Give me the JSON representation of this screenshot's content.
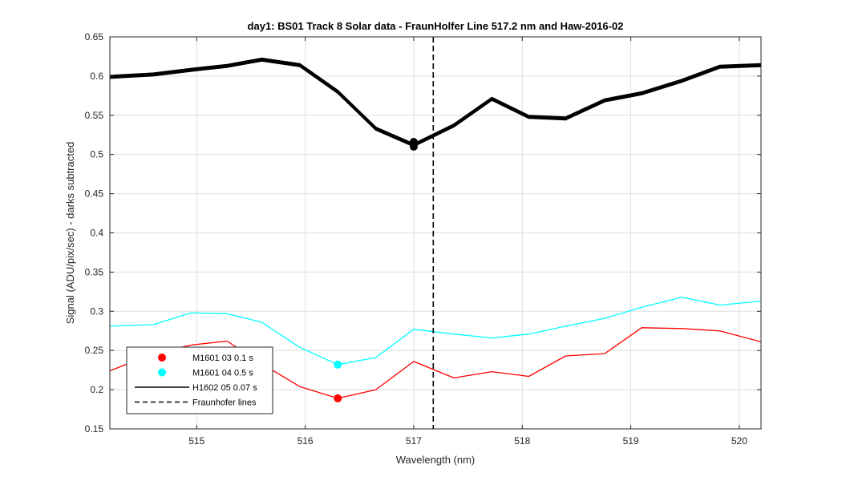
{
  "chart_data": {
    "type": "line",
    "title": "day1: BS01  Track 8 Solar data - FraunHolfer Line 517.2 nm and Haw-2016-02",
    "xlabel": "Wavelength (nm)",
    "ylabel": "Signal (ADU/pix/sec) - darks subtracted",
    "xlim": [
      514.2,
      520.2
    ],
    "ylim": [
      0.15,
      0.65
    ],
    "xticks": [
      515,
      516,
      517,
      518,
      519,
      520
    ],
    "xtick_labels": [
      "515",
      "516",
      "517",
      "518",
      "519",
      "520"
    ],
    "yticks": [
      0.15,
      0.2,
      0.25,
      0.3,
      0.35,
      0.4,
      0.45,
      0.5,
      0.55,
      0.6,
      0.65
    ],
    "ytick_labels": [
      "0.15",
      "0.2",
      "0.25",
      "0.3",
      "0.35",
      "0.4",
      "0.45",
      "0.5",
      "0.55",
      "0.6",
      "0.65"
    ],
    "grid": true,
    "legend_position": "bottom-left",
    "series": [
      {
        "name": "M1601 03 0.1 s",
        "color": "#ff0000",
        "x": [
          514.2,
          514.6,
          514.95,
          515.28,
          515.6,
          515.95,
          516.3,
          516.65,
          517.0,
          517.37,
          517.72,
          518.06,
          518.4,
          518.76,
          519.1,
          519.47,
          519.82,
          520.2
        ],
        "y": [
          0.224,
          0.246,
          0.257,
          0.262,
          0.233,
          0.204,
          0.189,
          0.2,
          0.236,
          0.215,
          0.223,
          0.217,
          0.243,
          0.246,
          0.279,
          0.278,
          0.275,
          0.261
        ],
        "marker": {
          "x": 516.3,
          "y": 0.189
        }
      },
      {
        "name": "M1601 04 0.5 s",
        "color": "#00ffff",
        "x": [
          514.2,
          514.6,
          514.95,
          515.28,
          515.6,
          515.95,
          516.3,
          516.65,
          517.0,
          517.37,
          517.72,
          518.06,
          518.4,
          518.76,
          519.1,
          519.47,
          519.82,
          520.2
        ],
        "y": [
          0.281,
          0.283,
          0.298,
          0.297,
          0.286,
          0.254,
          0.232,
          0.241,
          0.277,
          0.271,
          0.266,
          0.271,
          0.281,
          0.291,
          0.305,
          0.318,
          0.308,
          0.313
        ],
        "marker": {
          "x": 516.3,
          "y": 0.232
        }
      },
      {
        "name": "H1602 05 0.07 s",
        "color": "#000000",
        "x": [
          514.2,
          514.6,
          514.95,
          515.28,
          515.6,
          515.95,
          516.3,
          516.65,
          517.0,
          517.37,
          517.72,
          518.06,
          518.4,
          518.76,
          519.1,
          519.47,
          519.82,
          520.2
        ],
        "y": [
          0.599,
          0.602,
          0.608,
          0.613,
          0.621,
          0.614,
          0.58,
          0.533,
          0.512,
          0.537,
          0.571,
          0.548,
          0.546,
          0.569,
          0.578,
          0.594,
          0.612,
          0.614
        ],
        "marker": {
          "x": 517.0,
          "y": 0.51
        }
      }
    ],
    "vertical_lines": [
      {
        "name": "Fraunhofer lines",
        "x": 517.18,
        "style": "dashed",
        "color": "#000000"
      }
    ]
  }
}
